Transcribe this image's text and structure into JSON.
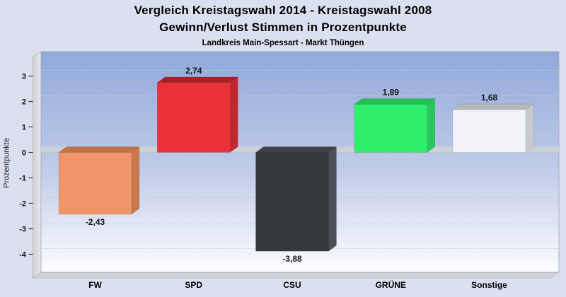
{
  "chart_data": {
    "type": "bar",
    "style": "3d-column",
    "title": "Vergleich Kreistagswahl 2014 - Kreistagswahl 2008",
    "subtitle": "Gewinn/Verlust Stimmen in Prozentpunkte",
    "caption": "Landkreis Main-Spessart - Markt Thüngen",
    "xlabel": "",
    "ylabel": "Prozentpunkte",
    "categories": [
      "FW",
      "SPD",
      "CSU",
      "GRÜNE",
      "Sonstige"
    ],
    "values": [
      -2.43,
      2.74,
      -3.88,
      1.89,
      1.68
    ],
    "value_labels": [
      "-2,43",
      "2,74",
      "-3,88",
      "1,89",
      "1,68"
    ],
    "bar_colors": [
      {
        "front": "#F0946A",
        "top": "#C07247",
        "side": "#C9794E"
      },
      {
        "front": "#E93138",
        "top": "#A91F28",
        "side": "#C2262E"
      },
      {
        "front": "#35383D",
        "top": "#3E4248",
        "side": "#4A4E55"
      },
      {
        "front": "#2FEE6C",
        "top": "#26BE54",
        "side": "#28C65C"
      },
      {
        "front": "#F1F3F8",
        "top": "#B7B9BE",
        "side": "#C8CAD0"
      }
    ],
    "y_ticks": [
      3,
      2,
      1,
      0,
      -1,
      -2,
      -3,
      -4
    ],
    "ylim": [
      -4.7,
      3.96
    ],
    "grid": "horizontal-dashed",
    "legend_position": "none"
  },
  "colors": {
    "page_background": "#DBE0F0",
    "plot_gradient_top": "#8FA9DA",
    "plot_gradient_mid": "#C2CDE8",
    "plot_gradient_bottom": "#FDFDFE",
    "wall_light": "#E9E9EC",
    "wall_dark": "#CFCFD4",
    "floor": "#D2D3D8",
    "zero_band": "#CFD1D6",
    "gridline": "#C9CED9",
    "frame_stroke": "#9FA5B8",
    "tick_color": "#3A3A3A",
    "text": "#141418"
  }
}
